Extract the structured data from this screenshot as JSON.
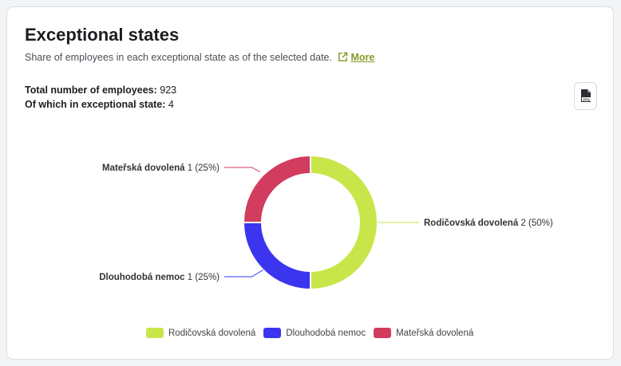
{
  "header": {
    "title": "Exceptional states",
    "subtitle": "Share of employees in each exceptional state as of the selected date.",
    "more_label": "More"
  },
  "stats": {
    "total_label": "Total number of employees:",
    "total_value": "923",
    "exceptional_label": "Of which in exceptional state:",
    "exceptional_value": "4"
  },
  "export": {
    "icon": "jpg-file-icon",
    "badge": "JPG"
  },
  "colors": {
    "accent": "#8a9a2b"
  },
  "chart_data": {
    "type": "pie",
    "variant": "donut",
    "legend_position": "bottom",
    "slices": [
      {
        "name": "Rodičovská dovolená",
        "value": 2,
        "percent_label": "(50%)",
        "color": "#c8e64a"
      },
      {
        "name": "Dlouhodobá nemoc",
        "value": 1,
        "percent_label": "(25%)",
        "color": "#3b35f0"
      },
      {
        "name": "Mateřská dovolená",
        "value": 1,
        "percent_label": "(25%)",
        "color": "#d23c5e"
      }
    ]
  }
}
